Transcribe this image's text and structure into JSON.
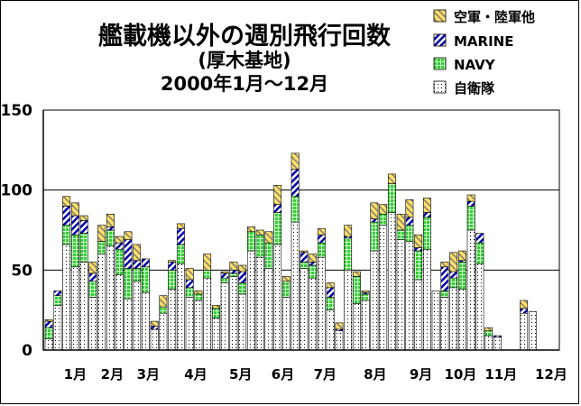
{
  "chart_data": {
    "type": "bar",
    "stacked": true,
    "title": "艦載機以外の週別飛行回数",
    "subtitle": "(厚木基地)",
    "period": "2000年1月～12月",
    "ylim": [
      0,
      150
    ],
    "yticks": [
      0,
      50,
      100,
      150
    ],
    "grid": true,
    "legend_position": "top-right",
    "months": [
      "1月",
      "2月",
      "3月",
      "4月",
      "5月",
      "6月",
      "7月",
      "8月",
      "9月",
      "10月",
      "11月",
      "12月"
    ],
    "month_week_index": [
      3,
      7.2,
      11.3,
      16.7,
      21.8,
      26.6,
      31.4,
      37.1,
      42.3,
      46.8,
      51.4,
      57.1
    ],
    "series": [
      {
        "name": "自衛隊",
        "values": [
          7,
          28,
          66,
          52,
          55,
          33,
          60,
          65,
          47,
          32,
          43,
          36,
          13,
          23,
          38,
          54,
          33,
          31,
          45,
          20,
          42,
          46,
          35,
          62,
          58,
          51,
          66,
          33,
          80,
          51,
          45,
          58,
          25,
          12,
          50,
          29,
          31,
          62,
          78,
          86,
          69,
          68,
          44,
          63,
          37,
          33,
          39,
          38,
          75,
          54,
          9,
          8,
          0,
          0,
          23,
          24
        ]
      },
      {
        "name": "NAVY",
        "values": [
          7,
          6,
          12,
          20,
          18,
          10,
          8,
          10,
          16,
          19,
          8,
          16,
          0,
          4,
          12,
          12,
          6,
          4,
          5,
          6,
          3,
          2,
          7,
          12,
          14,
          16,
          20,
          10,
          16,
          4,
          8,
          9,
          8,
          0,
          20,
          17,
          4,
          18,
          7,
          18,
          6,
          10,
          18,
          20,
          0,
          4,
          6,
          17,
          15,
          13,
          3,
          0,
          0,
          0,
          0,
          0
        ]
      },
      {
        "name": "MARINE",
        "values": [
          4,
          3,
          12,
          12,
          8,
          5,
          0,
          2,
          4,
          18,
          5,
          5,
          2,
          0,
          5,
          10,
          5,
          0,
          0,
          0,
          3,
          2,
          7,
          0,
          0,
          0,
          5,
          0,
          17,
          6,
          2,
          5,
          6,
          1,
          1,
          0,
          1,
          2,
          0,
          0,
          0,
          5,
          2,
          3,
          0,
          15,
          4,
          1,
          3,
          6,
          0,
          1,
          0,
          0,
          3,
          0
        ]
      },
      {
        "name": "空軍・陸軍他",
        "values": [
          1,
          0,
          6,
          8,
          3,
          7,
          10,
          8,
          4,
          5,
          10,
          0,
          3,
          7,
          1,
          3,
          7,
          2,
          10,
          2,
          1,
          5,
          4,
          3,
          3,
          7,
          12,
          3,
          10,
          1,
          5,
          4,
          3,
          4,
          7,
          3,
          1,
          10,
          6,
          6,
          10,
          11,
          8,
          9,
          0,
          3,
          12,
          6,
          4,
          0,
          2,
          0,
          0,
          0,
          5,
          0
        ]
      }
    ]
  },
  "style": {
    "colors": {
      "自衛隊": "#ffffff",
      "NAVY": "#33cc33",
      "MARINE": "#0000aa",
      "空軍・陸軍他": "#ffe066"
    }
  }
}
